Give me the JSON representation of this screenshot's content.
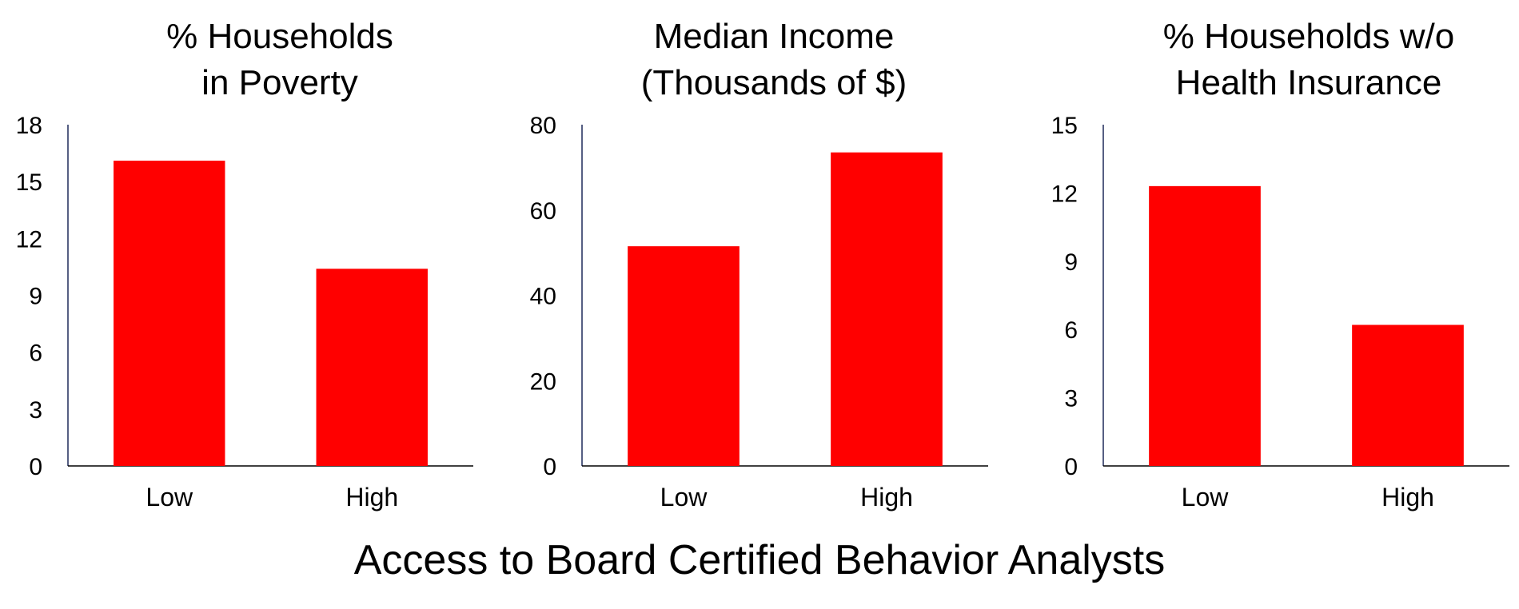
{
  "figure": {
    "xlabel": "Access to Board Certified Behavior Analysts",
    "bar_color": "#ff0000",
    "axis_color": "#1f2a5a"
  },
  "chart_data": [
    {
      "type": "bar",
      "title_lines": [
        "% Households",
        "in Poverty"
      ],
      "categories": [
        "Low",
        "High"
      ],
      "values": [
        16.1,
        10.4
      ],
      "ylim": [
        0,
        18
      ],
      "yticks": [
        0,
        3,
        6,
        9,
        12,
        15,
        18
      ],
      "grid": false
    },
    {
      "type": "bar",
      "title_lines": [
        "Median Income",
        "(Thousands of $)"
      ],
      "categories": [
        "Low",
        "High"
      ],
      "values": [
        51.5,
        73.5
      ],
      "ylim": [
        0,
        80
      ],
      "yticks": [
        0,
        20,
        40,
        60,
        80
      ],
      "grid": false
    },
    {
      "type": "bar",
      "title_lines": [
        "% Households w/o",
        "Health Insurance"
      ],
      "categories": [
        "Low",
        "High"
      ],
      "values": [
        12.3,
        6.2
      ],
      "ylim": [
        0,
        15
      ],
      "yticks": [
        0,
        3,
        6,
        9,
        12,
        15
      ],
      "grid": false
    }
  ]
}
